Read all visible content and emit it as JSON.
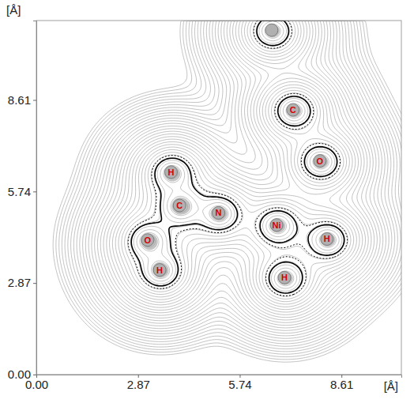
{
  "chart_data": {
    "type": "contour",
    "x_label": "[Å]",
    "y_label": "[Å]",
    "x": [
      3.8,
      4.04,
      5.14,
      3.14,
      3.48,
      6.78,
      8.2,
      7.0,
      8.0,
      7.24,
      6.64
    ],
    "values": [
      6.35,
      5.3,
      5.07,
      4.22,
      3.28,
      4.69,
      4.25,
      3.04,
      6.7,
      8.3,
      10.8
    ],
    "point_labels": [
      "H",
      "C",
      "N",
      "O",
      "H",
      "Ni",
      "H",
      "H",
      "O",
      "C",
      null
    ],
    "color": "#d40000",
    "xlim": [
      0,
      10.3
    ],
    "ylim": [
      0,
      11.1
    ],
    "xticks": [
      {
        "value": 0,
        "label": "0.00"
      },
      2.87,
      5.74,
      8.61
    ],
    "yticks": [
      {
        "value": 0,
        "label": "0.00"
      },
      2.87,
      5.74,
      8.61
    ],
    "grid": false
  }
}
